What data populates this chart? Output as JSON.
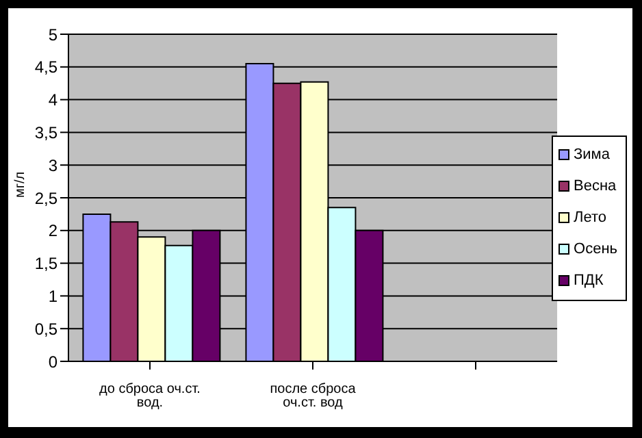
{
  "chart_data": {
    "type": "bar",
    "ylabel": "мг/л",
    "categories": [
      "до сброса оч.ст. вод.",
      "после сброса оч.ст. вод",
      null
    ],
    "series": [
      {
        "name": "Зима",
        "color": "#9999ff",
        "values": [
          2.25,
          4.55,
          null
        ]
      },
      {
        "name": "Весна",
        "color": "#993366",
        "values": [
          2.13,
          4.25,
          null
        ]
      },
      {
        "name": "Лето",
        "color": "#ffffcc",
        "values": [
          1.9,
          4.27,
          null
        ]
      },
      {
        "name": "Осень",
        "color": "#ccffff",
        "values": [
          1.77,
          2.35,
          null
        ]
      },
      {
        "name": "ПДК",
        "color": "#660066",
        "values": [
          2.0,
          2.0,
          null
        ]
      }
    ],
    "ylim": [
      0,
      5
    ],
    "yticks": [
      0,
      {
        "value": 0.5,
        "label": "0,5"
      },
      1,
      {
        "value": 1.5,
        "label": "1,5"
      },
      2,
      {
        "value": 2.5,
        "label": "2,5"
      },
      3,
      {
        "value": 3.5,
        "label": "3,5"
      },
      4,
      {
        "value": 4.5,
        "label": "4,5"
      },
      5
    ],
    "grid": "y",
    "legend": "right"
  }
}
